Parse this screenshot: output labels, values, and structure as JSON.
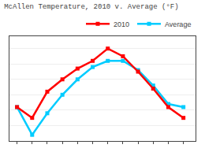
{
  "chart_data": {
    "type": "line",
    "title": "McAllen Temperature, 2010 v. Average (°F)",
    "x": [
      1,
      2,
      3,
      4,
      5,
      6,
      7,
      8,
      9,
      10,
      11,
      12
    ],
    "series": [
      {
        "name": "Average",
        "color": "#00ccff",
        "marker": "square",
        "values": [
          62,
          44,
          58,
          70,
          80,
          88,
          92,
          92,
          86,
          76,
          64,
          62
        ]
      },
      {
        "name": "2010",
        "color": "#ff0000",
        "marker": "square",
        "values": [
          62,
          55,
          72,
          80,
          87,
          92,
          100,
          95,
          85,
          74,
          62,
          55
        ]
      }
    ],
    "xlim": [
      0.5,
      12.8
    ],
    "xticks": [
      1,
      2,
      3,
      4,
      5,
      6,
      7,
      8,
      9,
      10,
      11,
      12
    ],
    "ylim": [
      40,
      108
    ],
    "yticks": [
      40,
      50,
      60,
      70,
      80,
      90,
      100
    ],
    "grid": true,
    "tick_labels": false,
    "legend": "top"
  }
}
